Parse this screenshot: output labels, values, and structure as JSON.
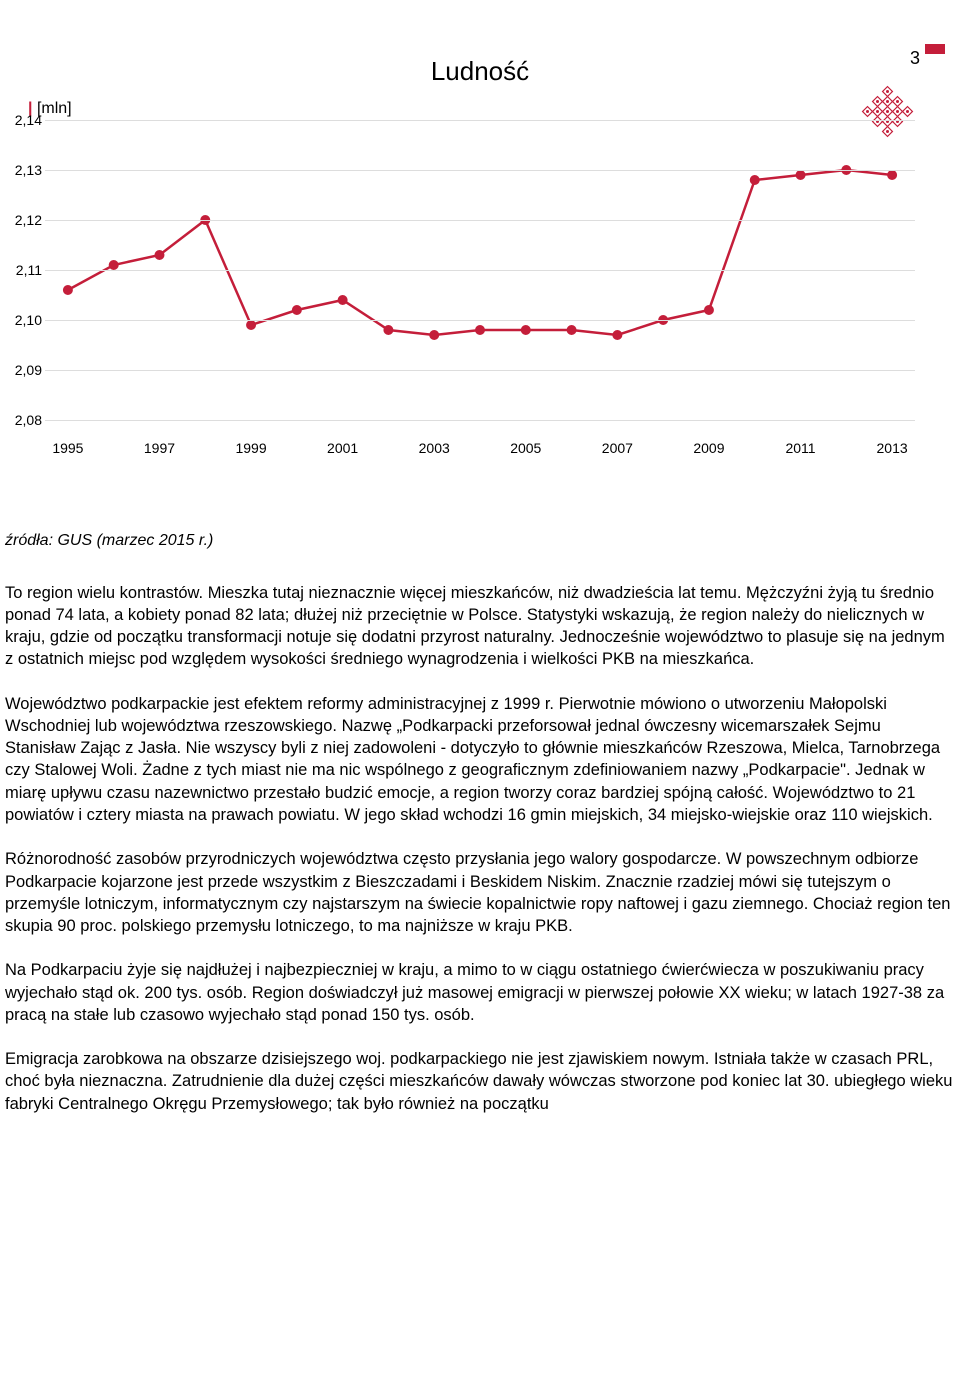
{
  "page_number": "3",
  "chart": {
    "title": "Ludność",
    "y_axis_unit": "[mln]",
    "type": "line",
    "line_color": "#c41e3a",
    "marker_color": "#c41e3a",
    "marker_radius": 5,
    "line_width": 2.5,
    "grid_color": "#dddddd",
    "background_color": "#ffffff",
    "ylim": [
      2.08,
      2.14
    ],
    "y_ticks": [
      "2,08",
      "2,09",
      "2,10",
      "2,11",
      "2,12",
      "2,13",
      "2,14"
    ],
    "y_tick_values": [
      2.08,
      2.09,
      2.1,
      2.11,
      2.12,
      2.13,
      2.14
    ],
    "x_ticks": [
      "1995",
      "1997",
      "1999",
      "2001",
      "2003",
      "2005",
      "2007",
      "2009",
      "2011",
      "2013"
    ],
    "x_tick_values": [
      1995,
      1997,
      1999,
      2001,
      2003,
      2005,
      2007,
      2009,
      2011,
      2013
    ],
    "xlim": [
      1994.5,
      2013.5
    ],
    "data_years": [
      1995,
      1996,
      1997,
      1998,
      1999,
      2000,
      2001,
      2002,
      2003,
      2004,
      2005,
      2006,
      2007,
      2008,
      2009,
      2010,
      2011,
      2012,
      2013
    ],
    "data_values": [
      2.106,
      2.111,
      2.113,
      2.12,
      2.099,
      2.102,
      2.104,
      2.098,
      2.097,
      2.098,
      2.098,
      2.098,
      2.097,
      2.1,
      2.102,
      2.128,
      2.129,
      2.13,
      2.129
    ]
  },
  "source_text": "źródła: GUS (marzec 2015 r.)",
  "paragraphs": [
    "To region wielu kontrastów. Mieszka tutaj nieznacznie więcej mieszkańców, niż dwadzieścia lat temu. Mężczyźni żyją tu średnio ponad 74 lata, a kobiety ponad 82 lata; dłużej niż przeciętnie w Polsce. Statystyki wskazują, że region należy do nielicznych w kraju, gdzie od początku transformacji notuje się dodatni przyrost naturalny. Jednocześnie województwo to plasuje się na jednym z ostatnich miejsc pod względem wysokości średniego wynagrodzenia i wielkości PKB na mieszkańca.",
    "Województwo podkarpackie jest efektem reformy administracyjnej z 1999 r. Pierwotnie mówiono o utworzeniu Małopolski Wschodniej lub województwa rzeszowskiego. Nazwę „Podkarpacki przeforsował jednal ówczesny wicemarszałek Sejmu Stanisław Zając z Jasła. Nie wszyscy byli z niej zadowoleni - dotyczyło to głównie mieszkańców Rzeszowa, Mielca, Tarnobrzega czy Stalowej Woli. Żadne z tych miast nie ma nic wspólnego z geograficznym zdefiniowaniem nazwy „Podkarpacie\". Jednak w miarę upływu czasu nazewnictwo przestało budzić emocje, a region tworzy coraz bardziej spójną całość. Województwo to 21 powiatów i cztery miasta na prawach powiatu. W jego skład wchodzi 16 gmin miejskich, 34 miejsko-wiejskie oraz 110 wiejskich.",
    "Różnorodność zasobów przyrodniczych województwa często przysłania jego walory gospodarcze. W powszechnym odbiorze Podkarpacie kojarzone jest przede wszystkim z Bieszczadami i Beskidem Niskim. Znacznie rzadziej mówi się tutejszym o przemyśle lotniczym, informatycznym czy najstarszym na świecie kopalnictwie ropy naftowej i gazu ziemnego. Chociaż region ten skupia 90 proc. polskiego przemysłu lotniczego, to ma najniższe w kraju PKB.",
    "Na Podkarpaciu żyje się najdłużej i najbezpieczniej w kraju, a mimo to w ciągu ostatniego ćwierćwiecza w poszukiwaniu pracy wyjechało stąd ok. 200 tys. osób. Region doświadczył już masowej emigracji w pierwszej połowie XX wieku; w latach 1927-38 za pracą na stałe lub czasowo wyjechało stąd ponad 150 tys. osób.",
    "Emigracja zarobkowa na obszarze dzisiejszego woj. podkarpackiego nie jest zjawiskiem nowym. Istniała także w czasach PRL, choć była nieznaczna. Zatrudnienie dla dużej części mieszkańców dawały wówczas stworzone pod koniec lat 30. ubiegłego wieku fabryki Centralnego Okręgu Przemysłowego; tak było również na początku"
  ]
}
